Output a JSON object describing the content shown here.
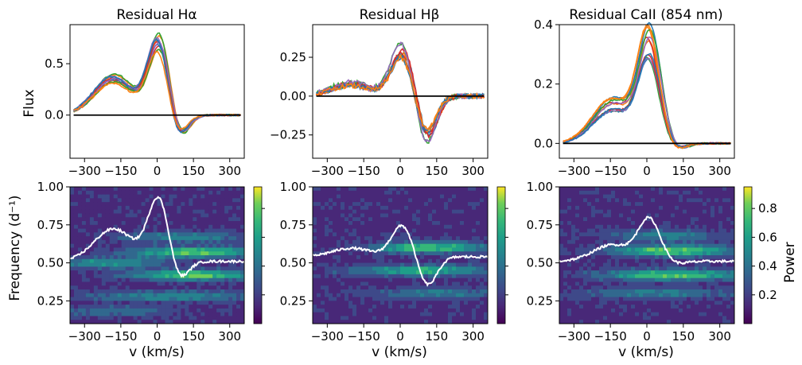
{
  "figure": {
    "colors": {
      "zero_line": "#000000",
      "white_curve": "#ffffff",
      "series_palette": [
        "#1f77b4",
        "#ff7f0e",
        "#2ca02c",
        "#d62728",
        "#9467bd",
        "#8c564b",
        "#e377c2",
        "#7f7f7f",
        "#bcbd22",
        "#17becf"
      ]
    },
    "colormap": "viridis",
    "colorbar_label": "Power",
    "colorbar_ticks": [
      "0.2",
      "0.4",
      "0.6",
      "0.8"
    ],
    "colorbar_range": [
      0.0,
      0.95
    ]
  },
  "chart_data": [
    {
      "type": "line",
      "panel": "top-left",
      "title": "Residual Hα",
      "ylabel": "Flux",
      "xlabel": "",
      "xlim": [
        -360,
        360
      ],
      "ylim": [
        -0.42,
        0.88
      ],
      "xticks": [
        -300,
        -150,
        0,
        150,
        300
      ],
      "xtick_labels": [
        "−300",
        "−150",
        "0",
        "150",
        "300"
      ],
      "yticks": [
        0.0,
        0.5
      ],
      "ytick_labels": [
        "0.0",
        "0.5"
      ],
      "zero_line": true,
      "note_series": "about 12 overlapping spectra",
      "profile": {
        "peak": 0.72,
        "peak_x": 10,
        "shoulder": 0.35,
        "shoulder_x": -180,
        "dip": -0.28,
        "dip_x": 80
      }
    },
    {
      "type": "line",
      "panel": "top-middle",
      "title": "Residual Hβ",
      "ylabel": "",
      "xlabel": "",
      "xlim": [
        -360,
        360
      ],
      "ylim": [
        -0.4,
        0.46
      ],
      "xticks": [
        -300,
        -150,
        0,
        150,
        300
      ],
      "xtick_labels": [
        "−300",
        "−150",
        "0",
        "150",
        "300"
      ],
      "yticks": [
        -0.25,
        0.0,
        0.25
      ],
      "ytick_labels": [
        "−0.25",
        "0.00",
        "0.25"
      ],
      "zero_line": true,
      "profile": {
        "peak": 0.3,
        "peak_x": 10,
        "shoulder": 0.08,
        "shoulder_x": -200,
        "dip": -0.28,
        "dip_x": 110
      }
    },
    {
      "type": "line",
      "panel": "top-right",
      "title": "Residual CaII (854 nm)",
      "ylabel": "",
      "xlabel": "",
      "xlim": [
        -360,
        360
      ],
      "ylim": [
        -0.05,
        0.4
      ],
      "xticks": [
        -300,
        -150,
        0,
        150,
        300
      ],
      "xtick_labels": [
        "−300",
        "−150",
        "0",
        "150",
        "300"
      ],
      "yticks": [
        0.0,
        0.2,
        0.4
      ],
      "ytick_labels": [
        "0.0",
        "0.2",
        "0.4"
      ],
      "zero_line": true,
      "profile": {
        "peak": 0.32,
        "peak_x": 10,
        "shoulder": 0.13,
        "shoulder_x": -140,
        "dip": -0.02,
        "dip_x": 120
      }
    },
    {
      "type": "heatmap",
      "panel": "bottom-left",
      "ylabel": "Frequency (d⁻¹)",
      "xlabel": "v (km/s)",
      "xlim": [
        -360,
        360
      ],
      "ylim": [
        0.1,
        1.0
      ],
      "xticks": [
        -300,
        -150,
        0,
        150,
        300
      ],
      "xtick_labels": [
        "−300",
        "−150",
        "0",
        "150",
        "300"
      ],
      "yticks": [
        0.25,
        0.5,
        0.75,
        1.0
      ],
      "ytick_labels": [
        "0.25",
        "0.50",
        "0.75",
        "1.00"
      ],
      "bands": [
        {
          "f": 0.57,
          "x": 150,
          "w": 180,
          "amp": 0.55
        },
        {
          "f": 0.42,
          "x": 150,
          "w": 180,
          "amp": 0.55
        },
        {
          "f": 0.5,
          "x": -200,
          "w": 160,
          "amp": 0.35
        },
        {
          "f": 0.67,
          "x": 100,
          "w": 180,
          "amp": 0.3
        },
        {
          "f": 0.28,
          "x": 60,
          "w": 250,
          "amp": 0.3
        },
        {
          "f": 0.18,
          "x": -200,
          "w": 200,
          "amp": 0.2
        }
      ],
      "overlay_profile": {
        "base": 0.51,
        "scale": 0.61,
        "peak": 0.72,
        "peak_x": 10,
        "shoulder": 0.35,
        "shoulder_x": -180,
        "dip": -0.28,
        "dip_x": 80
      }
    },
    {
      "type": "heatmap",
      "panel": "bottom-middle",
      "ylabel": "",
      "xlabel": "v (km/s)",
      "xlim": [
        -360,
        360
      ],
      "ylim": [
        0.1,
        1.0
      ],
      "xticks": [
        -300,
        -150,
        0,
        150,
        300
      ],
      "xtick_labels": [
        "−300",
        "−150",
        "0",
        "150",
        "300"
      ],
      "yticks": [
        0.25,
        0.5,
        0.75,
        1.0
      ],
      "ytick_labels": [
        "0.25",
        "0.50",
        "0.75",
        "1.00"
      ],
      "bands": [
        {
          "f": 0.6,
          "x": 120,
          "w": 160,
          "amp": 0.55
        },
        {
          "f": 0.45,
          "x": 80,
          "w": 200,
          "amp": 0.45
        },
        {
          "f": 0.3,
          "x": 150,
          "w": 200,
          "amp": 0.25
        }
      ],
      "overlay_profile": {
        "base": 0.54,
        "scale": 0.7,
        "peak": 0.3,
        "peak_x": 10,
        "shoulder": 0.08,
        "shoulder_x": -200,
        "dip": -0.28,
        "dip_x": 110
      }
    },
    {
      "type": "heatmap",
      "panel": "bottom-right",
      "ylabel": "",
      "xlabel": "v (km/s)",
      "xlim": [
        -360,
        360
      ],
      "ylim": [
        0.1,
        1.0
      ],
      "xticks": [
        -300,
        -150,
        0,
        150,
        300
      ],
      "xtick_labels": [
        "−300",
        "−150",
        "0",
        "150",
        "300"
      ],
      "yticks": [
        0.25,
        0.5,
        0.75,
        1.0
      ],
      "ytick_labels": [
        "0.25",
        "0.50",
        "0.75",
        "1.00"
      ],
      "bands": [
        {
          "f": 0.58,
          "x": 100,
          "w": 170,
          "amp": 0.6
        },
        {
          "f": 0.42,
          "x": 100,
          "w": 200,
          "amp": 0.55
        },
        {
          "f": 0.68,
          "x": 60,
          "w": 150,
          "amp": 0.3
        },
        {
          "f": 0.3,
          "x": 50,
          "w": 250,
          "amp": 0.25
        }
      ],
      "overlay_profile": {
        "base": 0.51,
        "scale": 0.84,
        "peak": 0.32,
        "peak_x": 10,
        "shoulder": 0.13,
        "shoulder_x": -140,
        "dip": -0.02,
        "dip_x": 120
      }
    }
  ]
}
